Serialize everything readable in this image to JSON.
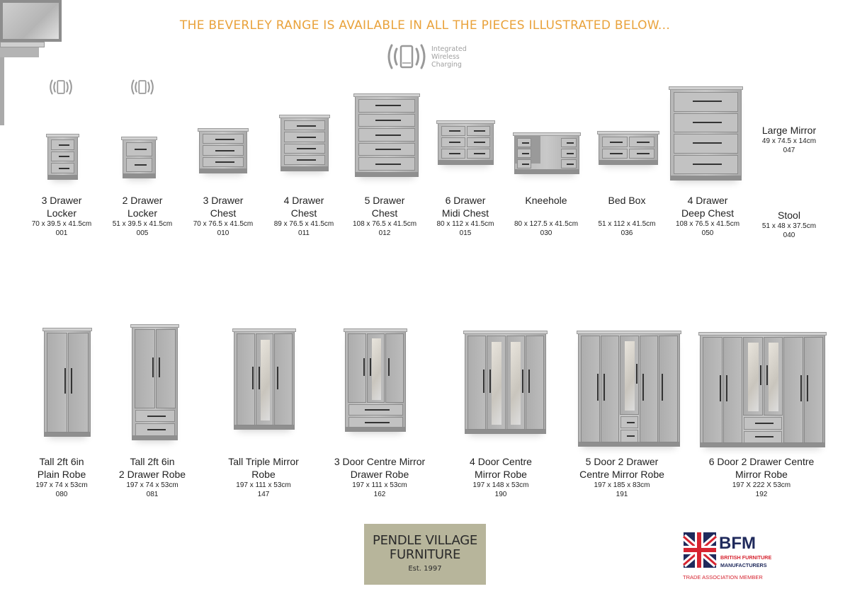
{
  "headline": "THE BEVERLEY RANGE IS AVAILABLE IN ALL THE PIECES ILLUSTRATED BELOW...",
  "wireless": {
    "lines": [
      "Integrated",
      "Wireless",
      "Charging"
    ],
    "icon": "wireless-charging-icon"
  },
  "row1": [
    {
      "name": [
        "3 Drawer",
        "Locker"
      ],
      "dims": "70 x 39.5 x 41.5cm",
      "code": "001",
      "wireless": true
    },
    {
      "name": [
        "2 Drawer",
        "Locker"
      ],
      "dims": "51 x 39.5 x 41.5cm",
      "code": "005",
      "wireless": true
    },
    {
      "name": [
        "3 Drawer",
        "Chest"
      ],
      "dims": "70 x 76.5 x 41.5cm",
      "code": "010"
    },
    {
      "name": [
        "4 Drawer",
        "Chest"
      ],
      "dims": "89 x 76.5 x 41.5cm",
      "code": "011"
    },
    {
      "name": [
        "5 Drawer",
        "Chest"
      ],
      "dims": "108 x 76.5 x 41.5cm",
      "code": "012"
    },
    {
      "name": [
        "6 Drawer",
        "Midi Chest"
      ],
      "dims": "80 x 112 x 41.5cm",
      "code": "015"
    },
    {
      "name": [
        "Kneehole",
        ""
      ],
      "dims": "80 x 127.5 x 41.5cm",
      "code": "030"
    },
    {
      "name": [
        "Bed Box",
        ""
      ],
      "dims": "51 x 112 x 41.5cm",
      "code": "036"
    },
    {
      "name": [
        "4 Drawer",
        "Deep Chest"
      ],
      "dims": "108 x 76.5 x 41.5cm",
      "code": "050"
    },
    {
      "name": [
        "Large Mirror"
      ],
      "dims": "49 x 74.5 x 14cm",
      "code": "047"
    },
    {
      "name": [
        "Stool"
      ],
      "dims": "51 x 48 x 37.5cm",
      "code": "040"
    }
  ],
  "row2": [
    {
      "name": [
        "Tall 2ft 6in",
        "Plain Robe"
      ],
      "dims": "197 x 74 x 53cm",
      "code": "080"
    },
    {
      "name": [
        "Tall 2ft 6in",
        "2 Drawer Robe"
      ],
      "dims": "197 x 74 x 53cm",
      "code": "081"
    },
    {
      "name": [
        "Tall Triple Mirror",
        "Robe"
      ],
      "dims": "197 x 111 x 53cm",
      "code": "147"
    },
    {
      "name": [
        "3 Door Centre Mirror",
        "Drawer Robe"
      ],
      "dims": "197 x 111 x 53cm",
      "code": "162"
    },
    {
      "name": [
        "4 Door Centre",
        "Mirror Robe"
      ],
      "dims": "197 x 148 x 53cm",
      "code": "190"
    },
    {
      "name": [
        "5 Door 2 Drawer",
        "Centre Mirror Robe"
      ],
      "dims": "197 x 185 x 83cm",
      "code": "191"
    },
    {
      "name": [
        "6 Door 2 Drawer Centre",
        "Mirror Robe"
      ],
      "dims": "197 X 222 X 53cm",
      "code": "192"
    }
  ],
  "logos": {
    "pendle": {
      "line1": "PENDLE VILLAGE",
      "line2": "FURNITURE",
      "est": "Est. 1997"
    },
    "bfm": {
      "mark": "BFM",
      "line1": "BRITISH FURNITURE",
      "line2": "MANUFACTURERS",
      "tag": "TRADE ASSOCIATION MEMBER"
    }
  },
  "colors": {
    "headline": "#e9a23b",
    "furniture": "#bdbdbd",
    "pendle_bg": "#b7b59b",
    "bfm_navy": "#1f2a5c",
    "bfm_red": "#d62430"
  }
}
